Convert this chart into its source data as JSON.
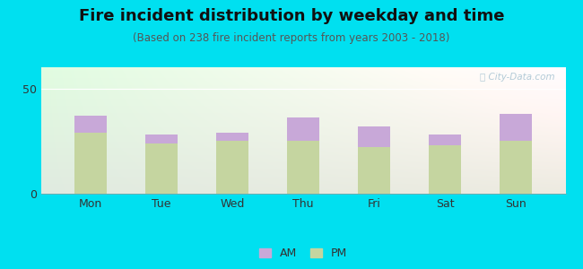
{
  "title": "Fire incident distribution by weekday and time",
  "subtitle": "(Based on 238 fire incident reports from years 2003 - 2018)",
  "days": [
    "Mon",
    "Tue",
    "Wed",
    "Thu",
    "Fri",
    "Sat",
    "Sun"
  ],
  "pm_values": [
    29,
    24,
    25,
    25,
    22,
    23,
    25
  ],
  "am_values": [
    8,
    4,
    4,
    11,
    10,
    5,
    13
  ],
  "pm_color": "#c5d5a0",
  "am_color": "#c8a8d8",
  "background_outer": "#00e0f0",
  "ylim": [
    0,
    60
  ],
  "yticks": [
    0,
    50
  ],
  "bar_width": 0.45,
  "title_fontsize": 13,
  "subtitle_fontsize": 8.5,
  "tick_fontsize": 9,
  "legend_fontsize": 9,
  "watermark_text": "Ⓜ City-Data.com"
}
